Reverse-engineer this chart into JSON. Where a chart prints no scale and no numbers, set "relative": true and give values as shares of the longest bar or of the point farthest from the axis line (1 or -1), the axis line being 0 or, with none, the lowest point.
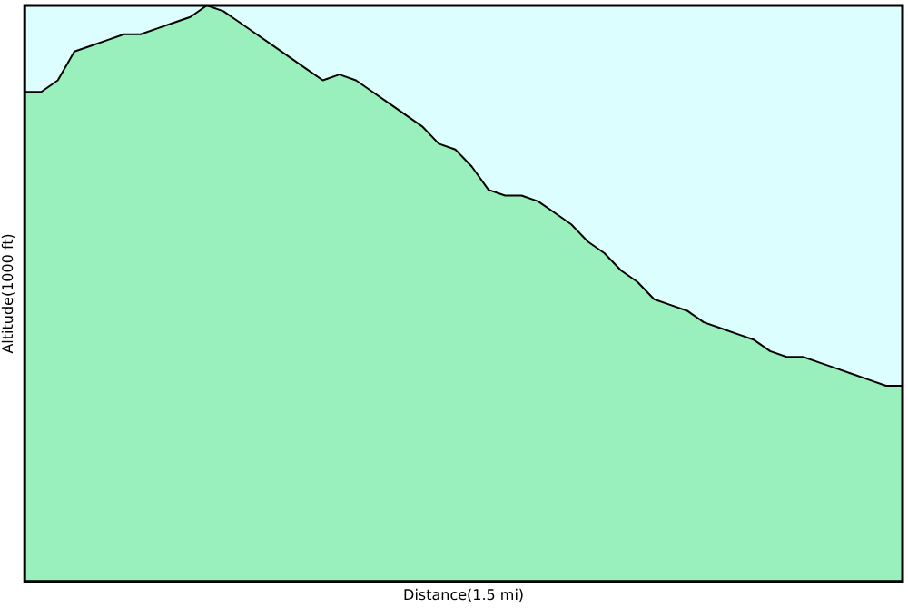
{
  "chart_data": {
    "type": "area",
    "xlabel": "Distance(1.5 mi)",
    "ylabel": "Altitude(1000 ft)",
    "relative": true,
    "grid": false,
    "legend": false,
    "categories": [
      null,
      null,
      null,
      null,
      null,
      null,
      null,
      null,
      null,
      null,
      null,
      null,
      null,
      null,
      null,
      null,
      null,
      null,
      null,
      null,
      null,
      null,
      null,
      null,
      null,
      null,
      null,
      null,
      null,
      null,
      null,
      null,
      null,
      null,
      null,
      null,
      null,
      null,
      null,
      null,
      null,
      null,
      null,
      null,
      null,
      null,
      null,
      null,
      null,
      null,
      null,
      null,
      null,
      null
    ],
    "series": [
      {
        "color": "#9af0bc",
        "values": [
          0.85,
          0.85,
          0.87,
          0.92,
          0.93,
          0.94,
          0.95,
          0.95,
          0.96,
          0.97,
          0.98,
          1,
          0.99,
          0.97,
          0.95,
          0.93,
          0.91,
          0.89,
          0.87,
          0.88,
          0.87,
          0.85,
          0.83,
          0.81,
          0.79,
          0.76,
          0.75,
          0.72,
          0.68,
          0.67,
          0.67,
          0.66,
          0.64,
          0.62,
          0.59,
          0.57,
          0.54,
          0.52,
          0.49,
          0.48,
          0.47,
          0.45,
          0.44,
          0.43,
          0.42,
          0.4,
          0.39,
          0.39,
          0.38,
          0.37,
          0.36,
          0.35,
          0.34,
          0.34
        ]
      }
    ]
  }
}
